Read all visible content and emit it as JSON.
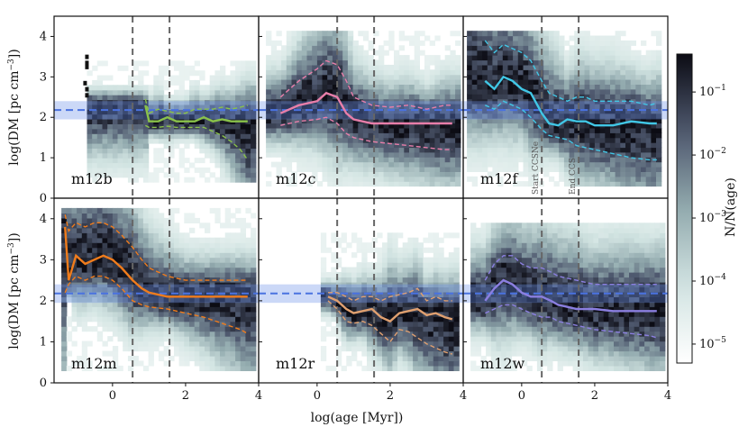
{
  "chart_data": {
    "type": "heatmap",
    "xlabel": "log(age [Myr])",
    "ylabel": "log(DM [pc cm^{-3}])",
    "ylabel_parts": {
      "prefix": "log(DM [pc cm",
      "sup": "−3",
      "suffix": "])"
    },
    "xlim": [
      -1.6,
      4.0
    ],
    "ylim": [
      0,
      4.5
    ],
    "xticks": [
      "0",
      "2",
      "4"
    ],
    "xtick_values": [
      0,
      2,
      4
    ],
    "yticks": [
      "0",
      "1",
      "2",
      "3",
      "4"
    ],
    "ytick_values": [
      0,
      1,
      2,
      3,
      4
    ],
    "vertical_lines": [
      {
        "x": 0.55,
        "label": "Start CCSNe"
      },
      {
        "x": 1.56,
        "label": "End CCS"
      }
    ],
    "observed_band": {
      "center": 2.18,
      "lower": 1.95,
      "upper": 2.4
    },
    "colorbar": {
      "label": "N/N(age)",
      "colormap": "bone_r",
      "scale": "log",
      "range": [
        5e-06,
        0.4
      ],
      "ticks": [
        {
          "value": 0.1,
          "base": "10",
          "exp": "−1"
        },
        {
          "value": 0.01,
          "base": "10",
          "exp": "−2"
        },
        {
          "value": 0.001,
          "base": "10",
          "exp": "−3"
        },
        {
          "value": 0.0001,
          "base": "10",
          "exp": "−4"
        },
        {
          "value": 1e-05,
          "base": "10",
          "exp": "−5"
        }
      ]
    },
    "panels": [
      {
        "name": "m12b",
        "color": "#8ac24a",
        "data_xmin": -0.7,
        "hmin": 0.4,
        "hmax": 3.4,
        "x": [
          0.9,
          1.0,
          1.25,
          1.5,
          1.75,
          2.0,
          2.25,
          2.5,
          2.75,
          3.0,
          3.25,
          3.5,
          3.7
        ],
        "median": [
          2.3,
          1.9,
          1.9,
          2.0,
          1.9,
          1.9,
          1.9,
          2.0,
          1.9,
          1.95,
          1.9,
          1.9,
          1.9
        ],
        "upper": [
          2.45,
          2.1,
          2.2,
          2.15,
          2.1,
          2.1,
          2.2,
          2.2,
          2.2,
          2.25,
          2.2,
          2.25,
          2.3
        ],
        "lower": [
          1.8,
          1.75,
          1.75,
          1.78,
          1.75,
          1.75,
          1.75,
          1.75,
          1.65,
          1.55,
          1.4,
          1.2,
          0.95
        ]
      },
      {
        "name": "m12c",
        "color": "#e87ea9",
        "data_xmin": -1.4,
        "hmin": 0.3,
        "hmax": 4.1,
        "x": [
          -1.0,
          -0.5,
          0.0,
          0.25,
          0.55,
          0.8,
          1.0,
          1.5,
          2.0,
          2.5,
          3.0,
          3.5,
          3.7
        ],
        "median": [
          2.1,
          2.3,
          2.4,
          2.6,
          2.5,
          2.1,
          1.95,
          1.85,
          1.85,
          1.85,
          1.85,
          1.85,
          1.85
        ],
        "upper": [
          2.5,
          2.9,
          3.2,
          3.4,
          3.3,
          2.9,
          2.5,
          2.3,
          2.25,
          2.3,
          2.2,
          2.3,
          2.3
        ],
        "lower": [
          1.8,
          1.9,
          1.95,
          2.0,
          1.85,
          1.6,
          1.5,
          1.4,
          1.35,
          1.3,
          1.25,
          1.2,
          1.2
        ]
      },
      {
        "name": "m12f",
        "color": "#41c7e6",
        "data_xmin": -1.5,
        "hmin": 0.3,
        "hmax": 4.1,
        "x": [
          -1.0,
          -0.75,
          -0.5,
          -0.25,
          0.0,
          0.25,
          0.55,
          0.75,
          1.0,
          1.25,
          1.5,
          1.75,
          2.0,
          2.5,
          3.0,
          3.5,
          3.7
        ],
        "median": [
          2.9,
          2.7,
          3.0,
          2.9,
          2.7,
          2.6,
          2.1,
          1.85,
          1.8,
          1.95,
          1.9,
          1.9,
          1.8,
          1.8,
          1.9,
          1.85,
          1.85
        ],
        "upper": [
          3.9,
          3.6,
          3.8,
          3.7,
          3.6,
          3.4,
          2.9,
          2.6,
          2.5,
          2.4,
          2.5,
          2.5,
          2.4,
          2.4,
          2.4,
          2.3,
          2.35
        ],
        "lower": [
          2.3,
          2.2,
          2.4,
          2.3,
          2.2,
          2.0,
          1.7,
          1.55,
          1.5,
          1.45,
          1.3,
          1.25,
          1.2,
          1.1,
          1.0,
          0.95,
          0.95
        ]
      },
      {
        "name": "m12m",
        "color": "#f07c1c",
        "data_xmin": -1.4,
        "hmin": 0.3,
        "hmax": 4.2,
        "x": [
          -1.3,
          -1.2,
          -1.0,
          -0.75,
          -0.5,
          -0.25,
          0.0,
          0.25,
          0.55,
          0.8,
          1.0,
          1.5,
          2.0,
          2.5,
          3.0,
          3.5,
          3.7
        ],
        "median": [
          3.8,
          2.5,
          3.1,
          2.9,
          3.0,
          3.1,
          3.0,
          2.8,
          2.5,
          2.3,
          2.2,
          2.1,
          2.1,
          2.1,
          2.1,
          2.1,
          2.1
        ],
        "upper": [
          4.1,
          3.7,
          3.9,
          3.8,
          3.9,
          3.9,
          3.8,
          3.6,
          3.3,
          3.0,
          2.8,
          2.6,
          2.5,
          2.5,
          2.5,
          2.5,
          2.5
        ],
        "lower": [
          2.2,
          2.4,
          2.6,
          2.5,
          2.6,
          2.6,
          2.5,
          2.3,
          2.0,
          1.9,
          1.85,
          1.8,
          1.7,
          1.6,
          1.45,
          1.3,
          1.2
        ]
      },
      {
        "name": "m12r",
        "color": "#e0a070",
        "data_xmin": 0.1,
        "hmin": 0.3,
        "hmax": 3.6,
        "x": [
          0.3,
          0.55,
          0.8,
          1.0,
          1.25,
          1.5,
          1.75,
          2.0,
          2.25,
          2.5,
          2.75,
          3.0,
          3.25,
          3.5,
          3.7
        ],
        "median": [
          2.1,
          2.0,
          1.8,
          1.7,
          1.75,
          1.8,
          1.6,
          1.5,
          1.7,
          1.75,
          1.8,
          1.65,
          1.7,
          1.6,
          1.55
        ],
        "upper": [
          2.2,
          2.2,
          2.1,
          2.0,
          2.1,
          2.1,
          2.0,
          2.1,
          2.15,
          2.2,
          2.3,
          2.0,
          2.1,
          2.0,
          2.0
        ],
        "lower": [
          2.0,
          1.8,
          1.5,
          1.45,
          1.5,
          1.4,
          1.2,
          1.0,
          1.3,
          1.25,
          1.1,
          0.95,
          0.85,
          0.75,
          0.7
        ]
      },
      {
        "name": "m12w",
        "color": "#8b7fe0",
        "data_xmin": -1.4,
        "hmin": 0.3,
        "hmax": 3.9,
        "x": [
          -1.0,
          -0.75,
          -0.5,
          -0.25,
          0.0,
          0.25,
          0.55,
          0.8,
          1.0,
          1.5,
          2.0,
          2.5,
          3.0,
          3.5,
          3.7
        ],
        "median": [
          2.0,
          2.3,
          2.5,
          2.4,
          2.2,
          2.1,
          2.1,
          2.0,
          1.9,
          1.8,
          1.8,
          1.75,
          1.75,
          1.75,
          1.75
        ],
        "upper": [
          2.5,
          2.9,
          3.1,
          3.1,
          2.9,
          2.8,
          2.8,
          2.7,
          2.6,
          2.5,
          2.4,
          2.4,
          2.4,
          2.4,
          2.4
        ],
        "lower": [
          1.7,
          1.8,
          1.9,
          1.9,
          1.8,
          1.7,
          1.6,
          1.6,
          1.5,
          1.4,
          1.3,
          1.25,
          1.2,
          1.15,
          1.1
        ]
      }
    ]
  }
}
